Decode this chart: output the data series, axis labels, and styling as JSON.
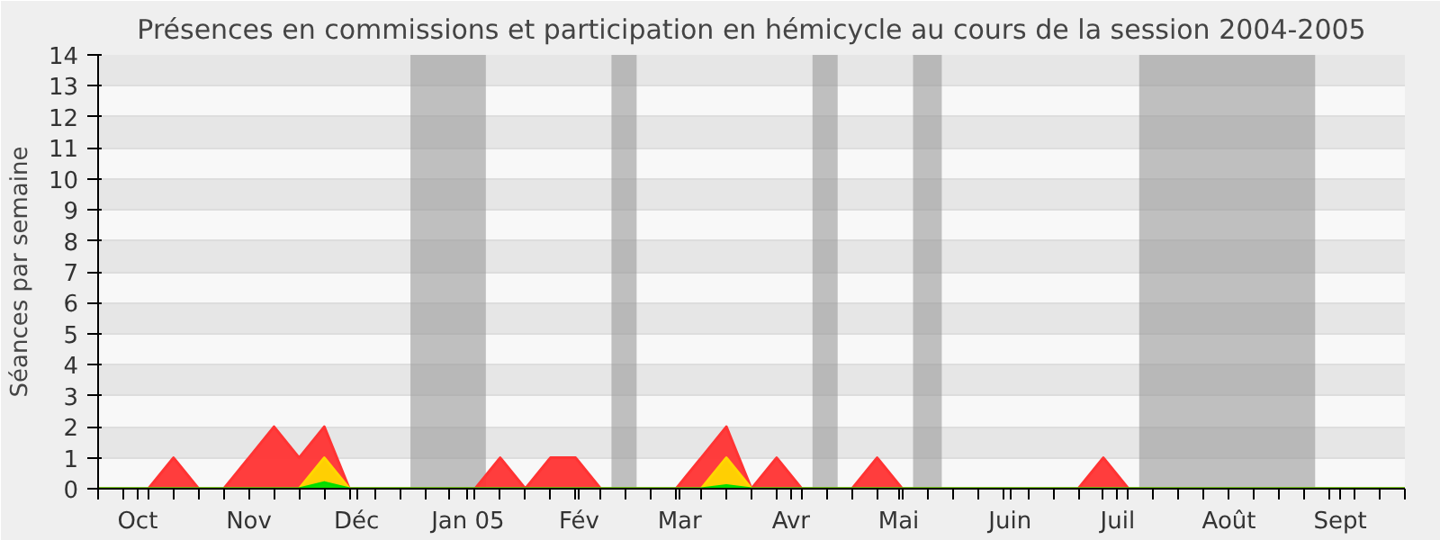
{
  "chart_data": {
    "type": "area",
    "title": "Présences en commissions et participation en hémicycle au cours de la session 2004-2005",
    "ylabel": "Séances par semaine",
    "x": [
      "2004-10-04",
      "2004-10-11",
      "2004-10-18",
      "2004-10-25",
      "2004-11-01",
      "2004-11-08",
      "2004-11-15",
      "2004-11-22",
      "2004-11-29",
      "2004-12-06",
      "2004-12-13",
      "2004-12-20",
      "2004-12-27",
      "2005-01-03",
      "2005-01-10",
      "2005-01-17",
      "2005-01-24",
      "2005-01-31",
      "2005-02-07",
      "2005-02-14",
      "2005-02-21",
      "2005-02-28",
      "2005-03-07",
      "2005-03-14",
      "2005-03-21",
      "2005-03-28",
      "2005-04-04",
      "2005-04-11",
      "2005-04-18",
      "2005-04-25",
      "2005-05-02",
      "2005-05-09",
      "2005-05-16",
      "2005-05-23",
      "2005-05-30",
      "2005-06-06",
      "2005-06-13",
      "2005-06-20",
      "2005-06-27",
      "2005-07-04",
      "2005-07-11",
      "2005-07-18",
      "2005-07-25",
      "2005-08-01",
      "2005-08-08",
      "2005-08-15",
      "2005-08-22",
      "2005-08-29",
      "2005-09-05",
      "2005-09-12",
      "2005-09-19",
      "2005-09-26",
      "2005-10-03"
    ],
    "series": [
      {
        "color": "#ff3333",
        "values": [
          0,
          0,
          0,
          1,
          0,
          0,
          1,
          2,
          1,
          2,
          0,
          0,
          0,
          0,
          0,
          0,
          1,
          0,
          1,
          1,
          0,
          0,
          0,
          0,
          1,
          2,
          0,
          1,
          0,
          0,
          0,
          1,
          0,
          0,
          0,
          0,
          0,
          0,
          0,
          0,
          1,
          0,
          0,
          0,
          0,
          0,
          0,
          0,
          0,
          0,
          0,
          0,
          0
        ]
      },
      {
        "color": "#ffd700",
        "values": [
          0,
          0,
          0,
          0,
          0,
          0,
          0,
          0,
          0,
          1,
          0,
          0,
          0,
          0,
          0,
          0,
          0,
          0,
          0,
          0,
          0,
          0,
          0,
          0,
          0,
          1,
          0,
          0,
          0,
          0,
          0,
          0,
          0,
          0,
          0,
          0,
          0,
          0,
          0,
          0,
          0,
          0,
          0,
          0,
          0,
          0,
          0,
          0,
          0,
          0,
          0,
          0,
          0
        ]
      },
      {
        "color": "#00dd00",
        "values": [
          0,
          0,
          0,
          0,
          0,
          0,
          0,
          0,
          0,
          0.2,
          0,
          0,
          0,
          0,
          0,
          0,
          0,
          0,
          0,
          0,
          0,
          0,
          0,
          0,
          0,
          0.1,
          0,
          0,
          0,
          0,
          0,
          0,
          0,
          0,
          0,
          0,
          0,
          0,
          0,
          0,
          0,
          0,
          0,
          0,
          0,
          0,
          0,
          0,
          0,
          0,
          0,
          0,
          0
        ]
      }
    ],
    "xlim": [
      "2004-10-04",
      "2005-10-03"
    ],
    "xticks": [
      {
        "value": "2004-10-15",
        "label": "Oct"
      },
      {
        "value": "2004-11-15",
        "label": "Nov"
      },
      {
        "value": "2004-12-15",
        "label": "Déc"
      },
      {
        "value": "2005-01-15",
        "label": "Jan 05"
      },
      {
        "value": "2005-02-15",
        "label": "Fév"
      },
      {
        "value": "2005-03-15",
        "label": "Mar"
      },
      {
        "value": "2005-04-15",
        "label": "Avr"
      },
      {
        "value": "2005-05-15",
        "label": "Mai"
      },
      {
        "value": "2005-06-15",
        "label": "Juin"
      },
      {
        "value": "2005-07-15",
        "label": "Juil"
      },
      {
        "value": "2005-08-15",
        "label": "Août"
      },
      {
        "value": "2005-09-15",
        "label": "Sept"
      },
      {
        "value": "2004-10-04",
        "label": null
      },
      {
        "value": "2004-10-11",
        "label": null
      },
      {
        "value": "2004-10-18",
        "label": null
      },
      {
        "value": "2004-10-25",
        "label": null
      },
      {
        "value": "2004-11-01",
        "label": null
      },
      {
        "value": "2004-11-08",
        "label": null
      },
      {
        "value": "2004-11-22",
        "label": null
      },
      {
        "value": "2004-11-29",
        "label": null
      },
      {
        "value": "2004-12-06",
        "label": null
      },
      {
        "value": "2004-12-13",
        "label": null
      },
      {
        "value": "2004-12-20",
        "label": null
      },
      {
        "value": "2004-12-27",
        "label": null
      },
      {
        "value": "2005-01-03",
        "label": null
      },
      {
        "value": "2005-01-10",
        "label": null
      },
      {
        "value": "2005-01-17",
        "label": null
      },
      {
        "value": "2005-01-24",
        "label": null
      },
      {
        "value": "2005-01-31",
        "label": null
      },
      {
        "value": "2005-02-07",
        "label": null
      },
      {
        "value": "2005-02-14",
        "label": null
      },
      {
        "value": "2005-02-21",
        "label": null
      },
      {
        "value": "2005-02-28",
        "label": null
      },
      {
        "value": "2005-03-07",
        "label": null
      },
      {
        "value": "2005-03-14",
        "label": null
      },
      {
        "value": "2005-03-21",
        "label": null
      },
      {
        "value": "2005-03-28",
        "label": null
      },
      {
        "value": "2005-04-04",
        "label": null
      },
      {
        "value": "2005-04-11",
        "label": null
      },
      {
        "value": "2005-04-18",
        "label": null
      },
      {
        "value": "2005-04-25",
        "label": null
      },
      {
        "value": "2005-05-02",
        "label": null
      },
      {
        "value": "2005-05-09",
        "label": null
      },
      {
        "value": "2005-05-16",
        "label": null
      },
      {
        "value": "2005-05-23",
        "label": null
      },
      {
        "value": "2005-05-30",
        "label": null
      },
      {
        "value": "2005-06-06",
        "label": null
      },
      {
        "value": "2005-06-13",
        "label": null
      },
      {
        "value": "2005-06-20",
        "label": null
      },
      {
        "value": "2005-06-27",
        "label": null
      },
      {
        "value": "2005-07-04",
        "label": null
      },
      {
        "value": "2005-07-11",
        "label": null
      },
      {
        "value": "2005-07-18",
        "label": null
      },
      {
        "value": "2005-07-25",
        "label": null
      },
      {
        "value": "2005-08-01",
        "label": null
      },
      {
        "value": "2005-08-08",
        "label": null
      },
      {
        "value": "2005-08-22",
        "label": null
      },
      {
        "value": "2005-08-29",
        "label": null
      },
      {
        "value": "2005-09-05",
        "label": null
      },
      {
        "value": "2005-09-12",
        "label": null
      },
      {
        "value": "2005-09-19",
        "label": null
      },
      {
        "value": "2005-09-26",
        "label": null
      },
      {
        "value": "2005-10-03",
        "label": null
      }
    ],
    "ylim": [
      0,
      14
    ],
    "yticks": [
      0,
      1,
      2,
      3,
      4,
      5,
      6,
      7,
      8,
      9,
      10,
      11,
      12,
      13,
      14
    ],
    "grid": "y",
    "bands": [
      {
        "axis": "x",
        "from": "2004-12-30",
        "to": "2005-01-20",
        "color": "#999999"
      },
      {
        "axis": "x",
        "from": "2005-02-24",
        "to": "2005-03-03",
        "color": "#999999"
      },
      {
        "axis": "x",
        "from": "2005-04-21",
        "to": "2005-04-28",
        "color": "#999999"
      },
      {
        "axis": "x",
        "from": "2005-05-19",
        "to": "2005-05-27",
        "color": "#999999"
      },
      {
        "axis": "x",
        "from": "2005-07-21",
        "to": "2005-09-08",
        "color": "#999999"
      }
    ]
  }
}
